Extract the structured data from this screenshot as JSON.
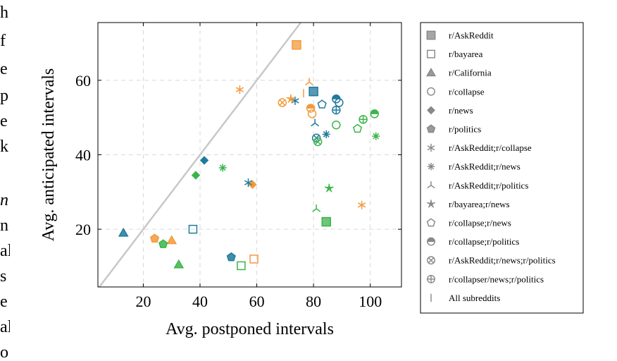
{
  "side_text": [
    "h",
    "f",
    "e",
    "p",
    "e",
    "k",
    "n",
    "n",
    "al",
    "s",
    "e",
    "al",
    "o"
  ],
  "colors": {
    "blue": "#1f7a9c",
    "orange": "#f39a3b",
    "green": "#3cb44b",
    "diagonal": "#c8c8c8",
    "grid": "#d9d9d9",
    "legend_marker": "#888888"
  },
  "chart_data": {
    "type": "scatter",
    "xlabel": "Avg. postponed intervals",
    "ylabel": "Avg. anticipated intervals",
    "xlim": [
      4,
      111
    ],
    "ylim": [
      4.5,
      75.5
    ],
    "x_ticks": [
      20,
      40,
      60,
      80,
      100
    ],
    "y_ticks": [
      20,
      40,
      60
    ],
    "grid": true,
    "grid_style": "dashed",
    "reference_line": "y = x",
    "legend_position": "outside-right",
    "legend": [
      {
        "label": "r/AskReddit",
        "marker": "square-filled"
      },
      {
        "label": "r/bayarea",
        "marker": "square-open"
      },
      {
        "label": "r/California",
        "marker": "triangle-filled"
      },
      {
        "label": "r/collapse",
        "marker": "circle-open"
      },
      {
        "label": "r/news",
        "marker": "diamond-filled"
      },
      {
        "label": "r/politics",
        "marker": "pentagon-filled"
      },
      {
        "label": "r/AskReddit;r/collapse",
        "marker": "asterisk"
      },
      {
        "label": "r/AskReddit;r/news",
        "marker": "oplus-star"
      },
      {
        "label": "r/AskReddit;r/politics",
        "marker": "tri-down"
      },
      {
        "label": "r/bayarea;r/news",
        "marker": "star"
      },
      {
        "label": "r/collapse;r/news",
        "marker": "pentagon-open"
      },
      {
        "label": "r/collapse;r/politics",
        "marker": "halfcircle"
      },
      {
        "label": "r/AskReddit;r/news;r/politics",
        "marker": "otimes"
      },
      {
        "label": "r/collapser/news;r/politics",
        "marker": "oplus"
      },
      {
        "label": "All subreddits",
        "marker": "bar"
      }
    ],
    "points": [
      {
        "series": "r/AskReddit",
        "marker": "square-filled",
        "color": "orange",
        "x": 74,
        "y": 69.5
      },
      {
        "series": "r/AskReddit",
        "marker": "square-filled",
        "color": "blue",
        "x": 80,
        "y": 57
      },
      {
        "series": "r/AskReddit",
        "marker": "square-filled",
        "color": "green",
        "x": 84.5,
        "y": 22
      },
      {
        "series": "r/bayarea",
        "marker": "square-open",
        "color": "blue",
        "x": 37.5,
        "y": 20
      },
      {
        "series": "r/bayarea",
        "marker": "square-open",
        "color": "green",
        "x": 54.5,
        "y": 10.2
      },
      {
        "series": "r/bayarea",
        "marker": "square-open",
        "color": "orange",
        "x": 59,
        "y": 12
      },
      {
        "series": "r/California",
        "marker": "triangle-filled",
        "color": "blue",
        "x": 13,
        "y": 19
      },
      {
        "series": "r/California",
        "marker": "triangle-filled",
        "color": "orange",
        "x": 30,
        "y": 17
      },
      {
        "series": "r/California",
        "marker": "triangle-filled",
        "color": "green",
        "x": 32.5,
        "y": 10.5
      },
      {
        "series": "r/collapse",
        "marker": "circle-open",
        "color": "green",
        "x": 88,
        "y": 48
      },
      {
        "series": "r/collapse",
        "marker": "circle-open",
        "color": "orange",
        "x": 79.5,
        "y": 51
      },
      {
        "series": "r/collapse",
        "marker": "circle-open",
        "color": "blue",
        "x": 89,
        "y": 54
      },
      {
        "series": "r/news",
        "marker": "diamond-filled",
        "color": "blue",
        "x": 41.5,
        "y": 38.5
      },
      {
        "series": "r/news",
        "marker": "diamond-filled",
        "color": "green",
        "x": 38.5,
        "y": 34.5
      },
      {
        "series": "r/news",
        "marker": "diamond-filled",
        "color": "orange",
        "x": 58.5,
        "y": 32
      },
      {
        "series": "r/politics",
        "marker": "pentagon-filled",
        "color": "orange",
        "x": 24,
        "y": 17.5
      },
      {
        "series": "r/politics",
        "marker": "pentagon-filled",
        "color": "green",
        "x": 27,
        "y": 16
      },
      {
        "series": "r/politics",
        "marker": "pentagon-filled",
        "color": "blue",
        "x": 51,
        "y": 12.5
      },
      {
        "series": "r/AskReddit;r/collapse",
        "marker": "asterisk",
        "color": "orange",
        "x": 54,
        "y": 57.5
      },
      {
        "series": "r/AskReddit;r/collapse",
        "marker": "asterisk",
        "color": "blue",
        "x": 73.5,
        "y": 54.5
      },
      {
        "series": "r/AskReddit;r/collapse",
        "marker": "asterisk",
        "color": "blue",
        "x": 57,
        "y": 32.5
      },
      {
        "series": "r/AskReddit;r/collapse",
        "marker": "asterisk",
        "color": "orange",
        "x": 97,
        "y": 26.5
      },
      {
        "series": "r/AskReddit;r/news",
        "marker": "oplus-star",
        "color": "green",
        "x": 48,
        "y": 36.5
      },
      {
        "series": "r/AskReddit;r/news",
        "marker": "oplus-star",
        "color": "blue",
        "x": 84.5,
        "y": 45.5
      },
      {
        "series": "r/AskReddit;r/news",
        "marker": "oplus-star",
        "color": "green",
        "x": 102,
        "y": 45
      },
      {
        "series": "r/AskReddit;r/politics",
        "marker": "tri-down",
        "color": "orange",
        "x": 78.5,
        "y": 59.5
      },
      {
        "series": "r/AskReddit;r/politics",
        "marker": "tri-down",
        "color": "blue",
        "x": 80.5,
        "y": 48.5
      },
      {
        "series": "r/AskReddit;r/politics",
        "marker": "tri-down",
        "color": "green",
        "x": 81,
        "y": 25.5
      },
      {
        "series": "r/bayarea;r/news",
        "marker": "star",
        "color": "orange",
        "x": 72,
        "y": 55
      },
      {
        "series": "r/bayarea;r/news",
        "marker": "star",
        "color": "green",
        "x": 85.5,
        "y": 31
      },
      {
        "series": "r/collapse;r/news",
        "marker": "pentagon-open",
        "color": "blue",
        "x": 83,
        "y": 53.5
      },
      {
        "series": "r/collapse;r/news",
        "marker": "pentagon-open",
        "color": "green",
        "x": 95.5,
        "y": 47
      },
      {
        "series": "r/collapse;r/politics",
        "marker": "halfcircle",
        "color": "orange",
        "x": 79,
        "y": 52.5
      },
      {
        "series": "r/collapse;r/politics",
        "marker": "halfcircle",
        "color": "blue",
        "x": 88,
        "y": 55
      },
      {
        "series": "r/collapse;r/politics",
        "marker": "halfcircle",
        "color": "green",
        "x": 101.5,
        "y": 51
      },
      {
        "series": "r/AskReddit;r/news;r/politics",
        "marker": "otimes",
        "color": "orange",
        "x": 69,
        "y": 54
      },
      {
        "series": "r/AskReddit;r/news;r/politics",
        "marker": "otimes",
        "color": "blue",
        "x": 81,
        "y": 44.5
      },
      {
        "series": "r/AskReddit;r/news;r/politics",
        "marker": "otimes",
        "color": "green",
        "x": 81.5,
        "y": 43.5
      },
      {
        "series": "r/collapser/news;r/politics",
        "marker": "oplus",
        "color": "blue",
        "x": 88,
        "y": 52
      },
      {
        "series": "r/collapser/news;r/politics",
        "marker": "oplus",
        "color": "green",
        "x": 97.5,
        "y": 49.5
      },
      {
        "series": "All subreddits",
        "marker": "bar",
        "color": "orange",
        "x": 76.5,
        "y": 56.5
      }
    ]
  }
}
